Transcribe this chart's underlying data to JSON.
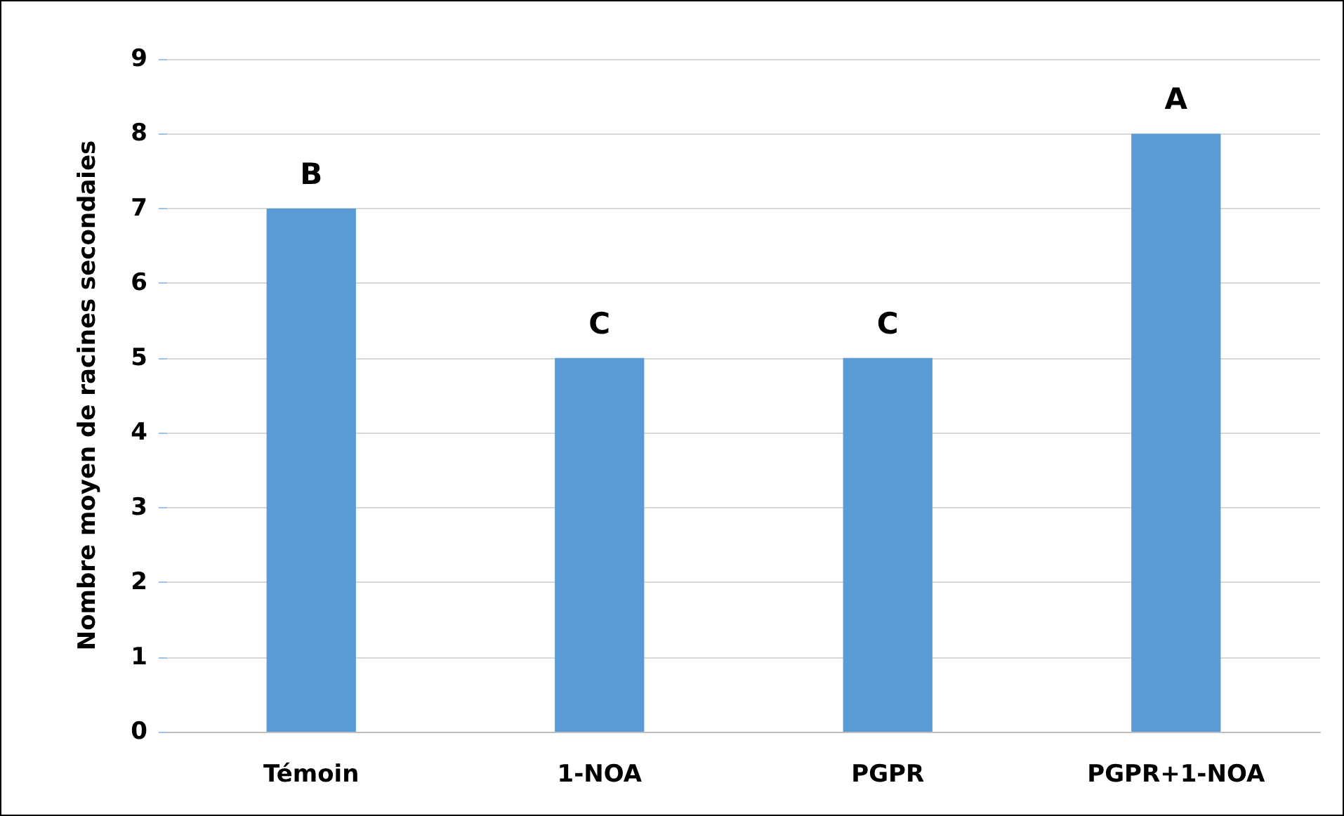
{
  "chart_data": {
    "type": "bar",
    "ylabel": "Nombre moyen de racines secondaies",
    "categories": [
      "Témoin",
      "1-NOA",
      "PGPR",
      "PGPR+1-NOA"
    ],
    "values": [
      7,
      5,
      5,
      8
    ],
    "color": "#5b9bd5",
    "value_labels": [
      "B",
      "C",
      "C",
      "A"
    ],
    "ylim": [
      0,
      9
    ],
    "yticks": [
      0,
      1,
      2,
      3,
      4,
      5,
      6,
      7,
      8,
      9
    ],
    "grid": "y"
  }
}
